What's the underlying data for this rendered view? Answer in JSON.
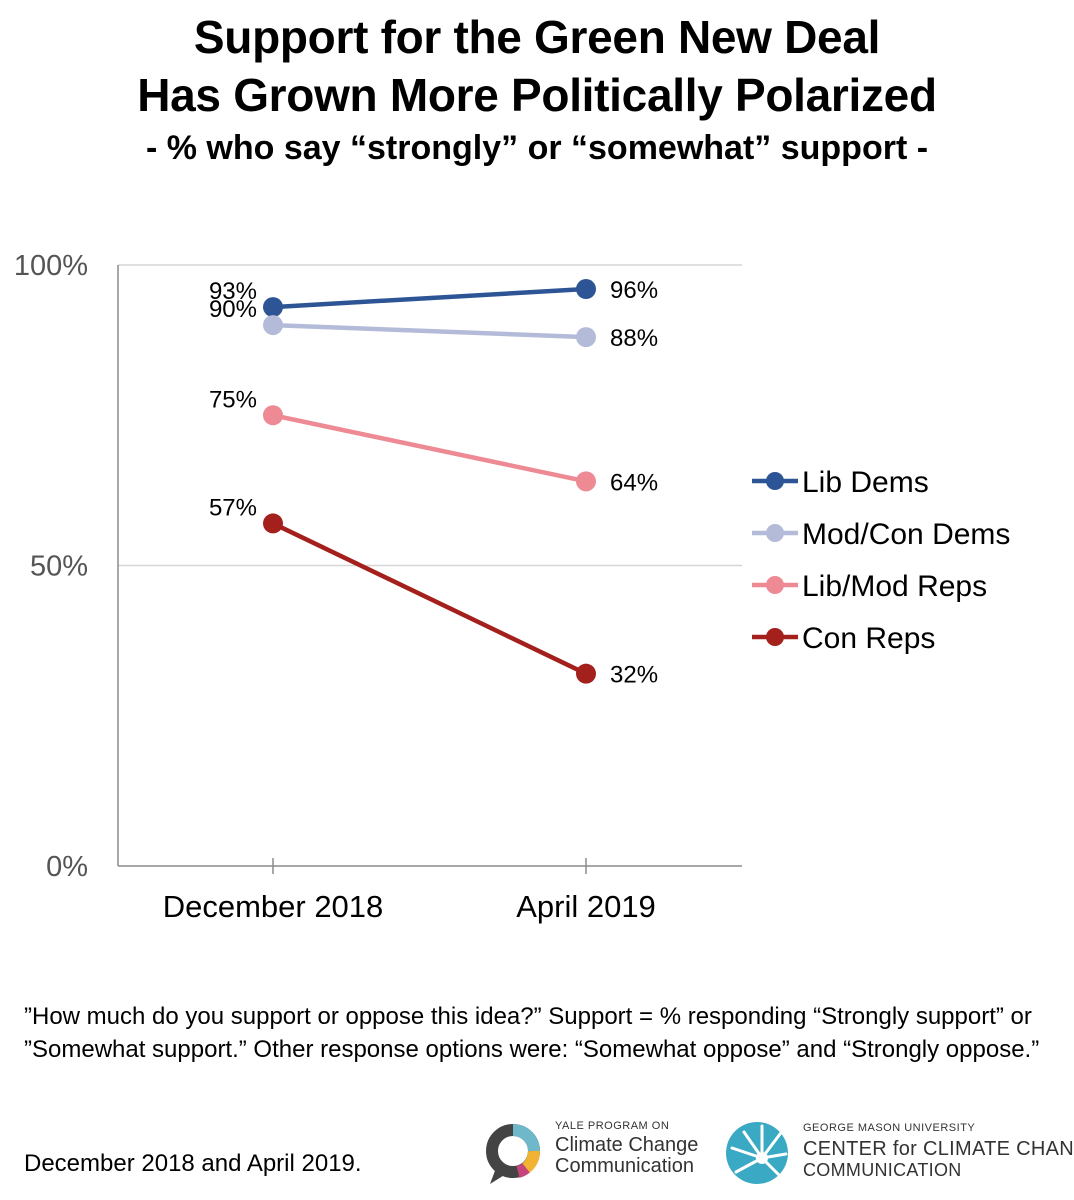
{
  "chart_data": {
    "type": "line",
    "title": "Support for the Green New Deal",
    "title_line2": "Has Grown More Politically Polarized",
    "subtitle": "- % who say “strongly” or “somewhat” support -",
    "categories": [
      "December 2018",
      "April 2019"
    ],
    "ylim": [
      0,
      100
    ],
    "yticks": [
      0,
      50,
      100
    ],
    "ytick_labels": [
      "0%",
      "50%",
      "100%"
    ],
    "series": [
      {
        "name": "Lib Dems",
        "color": "#2d5596",
        "values": [
          93,
          96
        ],
        "labels": [
          "93%",
          "96%"
        ]
      },
      {
        "name": "Mod/Con Dems",
        "color": "#b4bbd9",
        "values": [
          90,
          88
        ],
        "labels": [
          "90%",
          "88%"
        ]
      },
      {
        "name": "Lib/Mod Reps",
        "color": "#ee8a94",
        "values": [
          75,
          64
        ],
        "labels": [
          "75%",
          "64%"
        ]
      },
      {
        "name": "Con Reps",
        "color": "#a3201c",
        "values": [
          57,
          32
        ],
        "labels": [
          "57%",
          "32%"
        ]
      }
    ],
    "legend_position": "right"
  },
  "footnote": "”How much do you support or oppose this idea?”  Support = % responding “Strongly support” or ”Somewhat support.” Other response options were: “Somewhat oppose” and “Strongly oppose.”",
  "dates_note": "December 2018 and April 2019.",
  "logos": {
    "yale_small": "YALE PROGRAM ON",
    "yale_line1": "Climate Change",
    "yale_line2": "Communication",
    "gmu_small": "GEORGE MASON UNIVERSITY",
    "gmu_line1": "CENTER for CLIMATE CHANGE",
    "gmu_line2": "COMMUNICATION"
  }
}
